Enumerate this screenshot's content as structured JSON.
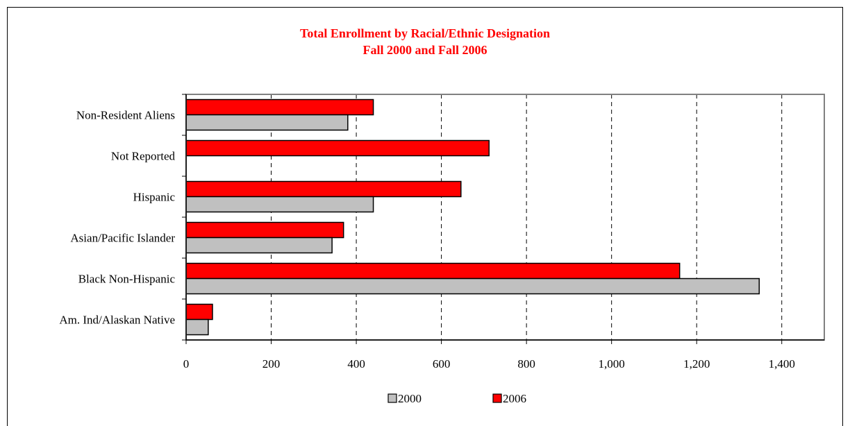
{
  "chart_data": {
    "type": "bar",
    "orientation": "horizontal",
    "title": "Total Enrollment by Racial/Ethnic Designation",
    "subtitle": "Fall 2000 and Fall 2006",
    "categories": [
      "Non-Resident Aliens",
      "Not Reported",
      "Hispanic",
      "Asian/Pacific Islander",
      "Black Non-Hispanic",
      "Am. Ind/Alaskan Native"
    ],
    "series": [
      {
        "name": "2006",
        "color": "#ff0000",
        "values": [
          440,
          712,
          646,
          370,
          1160,
          62
        ]
      },
      {
        "name": "2000",
        "color": "#c0c0c0",
        "values": [
          380,
          0,
          440,
          343,
          1347,
          52
        ]
      }
    ],
    "xlim": [
      0,
      1500
    ],
    "xticks": [
      0,
      200,
      400,
      600,
      800,
      1000,
      1200,
      1400
    ],
    "xtick_labels": [
      "0",
      "200",
      "400",
      "600",
      "800",
      "1,000",
      "1,200",
      "1,400"
    ],
    "grid": "vertical dashed",
    "legend": [
      {
        "label": "2000",
        "color": "#c0c0c0"
      },
      {
        "label": "2006",
        "color": "#ff0000"
      }
    ],
    "legend_position": "bottom"
  }
}
